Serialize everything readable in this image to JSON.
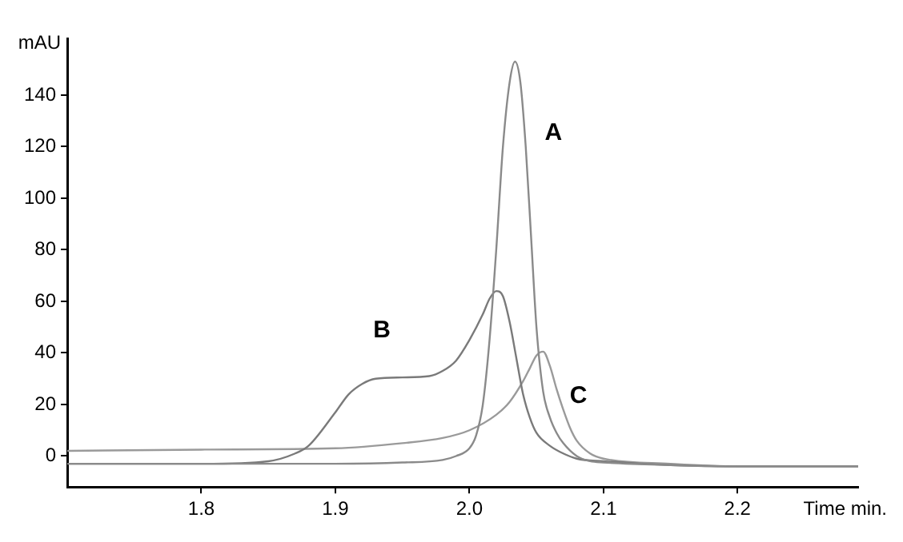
{
  "chart_data": {
    "type": "line",
    "ylabel": "mAU",
    "xlabel": "Time min.",
    "xlim": [
      1.7,
      2.29
    ],
    "ylim": [
      -12,
      162
    ],
    "xticks": [
      1.8,
      1.9,
      {
        "value": 2.0,
        "label": "2.0"
      },
      2.1,
      2.2
    ],
    "yticks": [
      0,
      20,
      40,
      60,
      80,
      100,
      120,
      140
    ],
    "grid": false,
    "legend": false,
    "marker": "none",
    "line_style": "solid",
    "series": [
      {
        "name": "A",
        "color": "#8a8a8a",
        "x": [
          1.7,
          1.8,
          1.9,
          1.95,
          1.98,
          1.99,
          2.0,
          2.005,
          2.01,
          2.015,
          2.02,
          2.025,
          2.03,
          2.034,
          2.038,
          2.042,
          2.046,
          2.05,
          2.055,
          2.06,
          2.065,
          2.07,
          2.08,
          2.09,
          2.1,
          2.15,
          2.2,
          2.29
        ],
        "values": [
          -3,
          -3,
          -3,
          -2.5,
          -1.5,
          0,
          3,
          8,
          20,
          45,
          80,
          120,
          145,
          153,
          145,
          120,
          85,
          50,
          25,
          15,
          9,
          5,
          0,
          -2,
          -2.5,
          -3.5,
          -4,
          -4
        ]
      },
      {
        "name": "B",
        "color": "#7a7a7a",
        "x": [
          1.7,
          1.8,
          1.85,
          1.87,
          1.88,
          1.9,
          1.91,
          1.92,
          1.93,
          1.95,
          1.97,
          1.98,
          1.99,
          2.0,
          2.01,
          2.015,
          2.02,
          2.025,
          2.03,
          2.035,
          2.04,
          2.045,
          2.05,
          2.06,
          2.07,
          2.08,
          2.1,
          2.15,
          2.2,
          2.29
        ],
        "values": [
          -3,
          -3,
          -2,
          1,
          4,
          17,
          24,
          28,
          30,
          30.5,
          31,
          33,
          37,
          45,
          55,
          61,
          64,
          62,
          52,
          38,
          24,
          15,
          9,
          4,
          1,
          -1,
          -2,
          -3.5,
          -4,
          -4
        ]
      },
      {
        "name": "C",
        "color": "#9a9a9a",
        "x": [
          1.7,
          1.8,
          1.9,
          1.95,
          1.98,
          2.0,
          2.02,
          2.03,
          2.04,
          2.045,
          2.05,
          2.055,
          2.06,
          2.065,
          2.07,
          2.075,
          2.08,
          2.09,
          2.1,
          2.15,
          2.2,
          2.29
        ],
        "values": [
          2,
          2.5,
          3,
          5,
          7,
          10,
          16,
          21,
          29,
          34,
          39,
          40.5,
          35,
          26,
          18,
          11,
          6,
          1,
          -1,
          -3,
          -4,
          -4
        ]
      }
    ]
  }
}
